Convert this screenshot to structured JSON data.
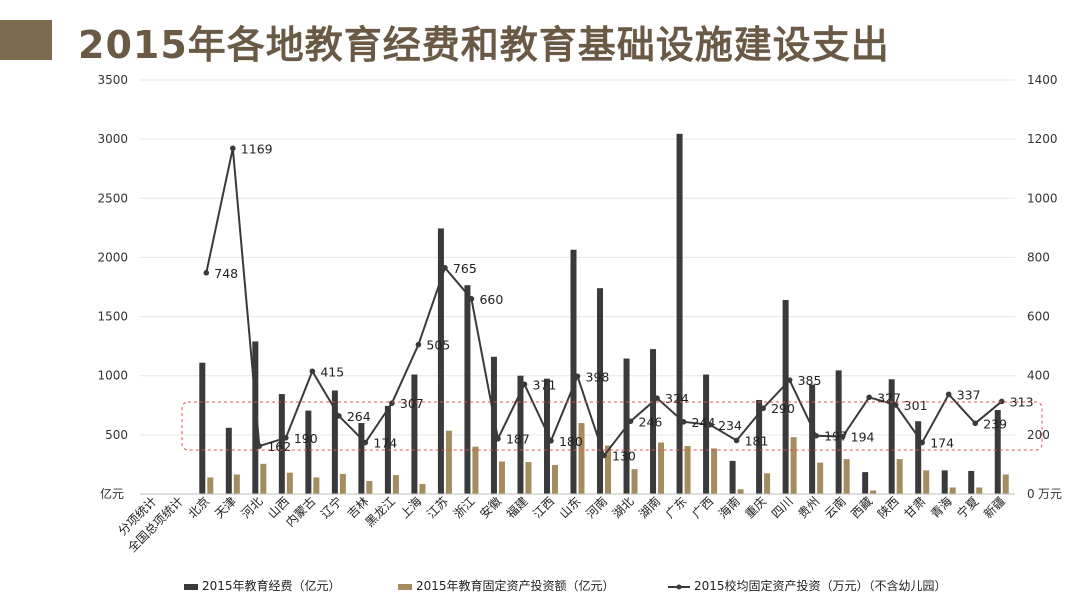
{
  "title": "2015年各地教育经费和教育基础设施建设支出",
  "chart_data": {
    "type": "bar",
    "title": "2015年各地教育经费和教育基础设施建设支出",
    "categories": [
      "分项统计",
      "全国总项统计",
      "北京",
      "天津",
      "河北",
      "山西",
      "内蒙古",
      "辽宁",
      "吉林",
      "黑龙江",
      "上海",
      "江苏",
      "浙江",
      "安徽",
      "福建",
      "江西",
      "山东",
      "河南",
      "湖北",
      "湖南",
      "广东",
      "广西",
      "海南",
      "重庆",
      "四川",
      "贵州",
      "云南",
      "西藏",
      "陕西",
      "甘肃",
      "青海",
      "宁夏",
      "新疆"
    ],
    "y_left": {
      "unit": "亿元",
      "ylim": [
        0,
        3500
      ],
      "ticks": [
        0,
        500,
        1000,
        1500,
        2000,
        2500,
        3000,
        3500
      ]
    },
    "y_right": {
      "unit": "万元",
      "ylim": [
        0,
        1400
      ],
      "ticks": [
        0,
        200,
        400,
        600,
        800,
        1000,
        1200,
        1400
      ]
    },
    "series": [
      {
        "name": "2015年教育经费（亿元）",
        "type": "bar",
        "axis": "left",
        "color": "#3a3a3a",
        "values": [
          null,
          null,
          1110,
          560,
          1290,
          845,
          705,
          875,
          600,
          745,
          1010,
          2245,
          1765,
          1160,
          1000,
          975,
          2065,
          1740,
          1145,
          1225,
          3045,
          1010,
          280,
          795,
          1640,
          925,
          1045,
          185,
          970,
          615,
          200,
          195,
          710
        ]
      },
      {
        "name": "2015年教育固定资产投资额（亿元）",
        "type": "bar",
        "axis": "left",
        "color": "#a48b60",
        "values": [
          null,
          null,
          140,
          165,
          255,
          180,
          140,
          170,
          110,
          160,
          85,
          535,
          400,
          275,
          270,
          245,
          600,
          410,
          210,
          435,
          405,
          385,
          40,
          175,
          480,
          265,
          295,
          30,
          295,
          200,
          55,
          55,
          165
        ]
      },
      {
        "name": "2015校均固定资产投资（万元）（不含幼儿园）",
        "type": "line",
        "axis": "right",
        "color": "#3a3a3a",
        "values": [
          null,
          null,
          748,
          1169,
          162,
          190,
          415,
          264,
          174,
          307,
          505,
          765,
          660,
          187,
          371,
          180,
          398,
          130,
          246,
          324,
          244,
          234,
          181,
          290,
          385,
          197,
          194,
          327,
          301,
          174,
          337,
          239,
          313
        ]
      }
    ],
    "legend_position": "bottom",
    "grid": true
  },
  "colors": {
    "title": "#6a5a45",
    "accent_bar": "#7d6a4f",
    "highlight_box": "#e05050"
  }
}
